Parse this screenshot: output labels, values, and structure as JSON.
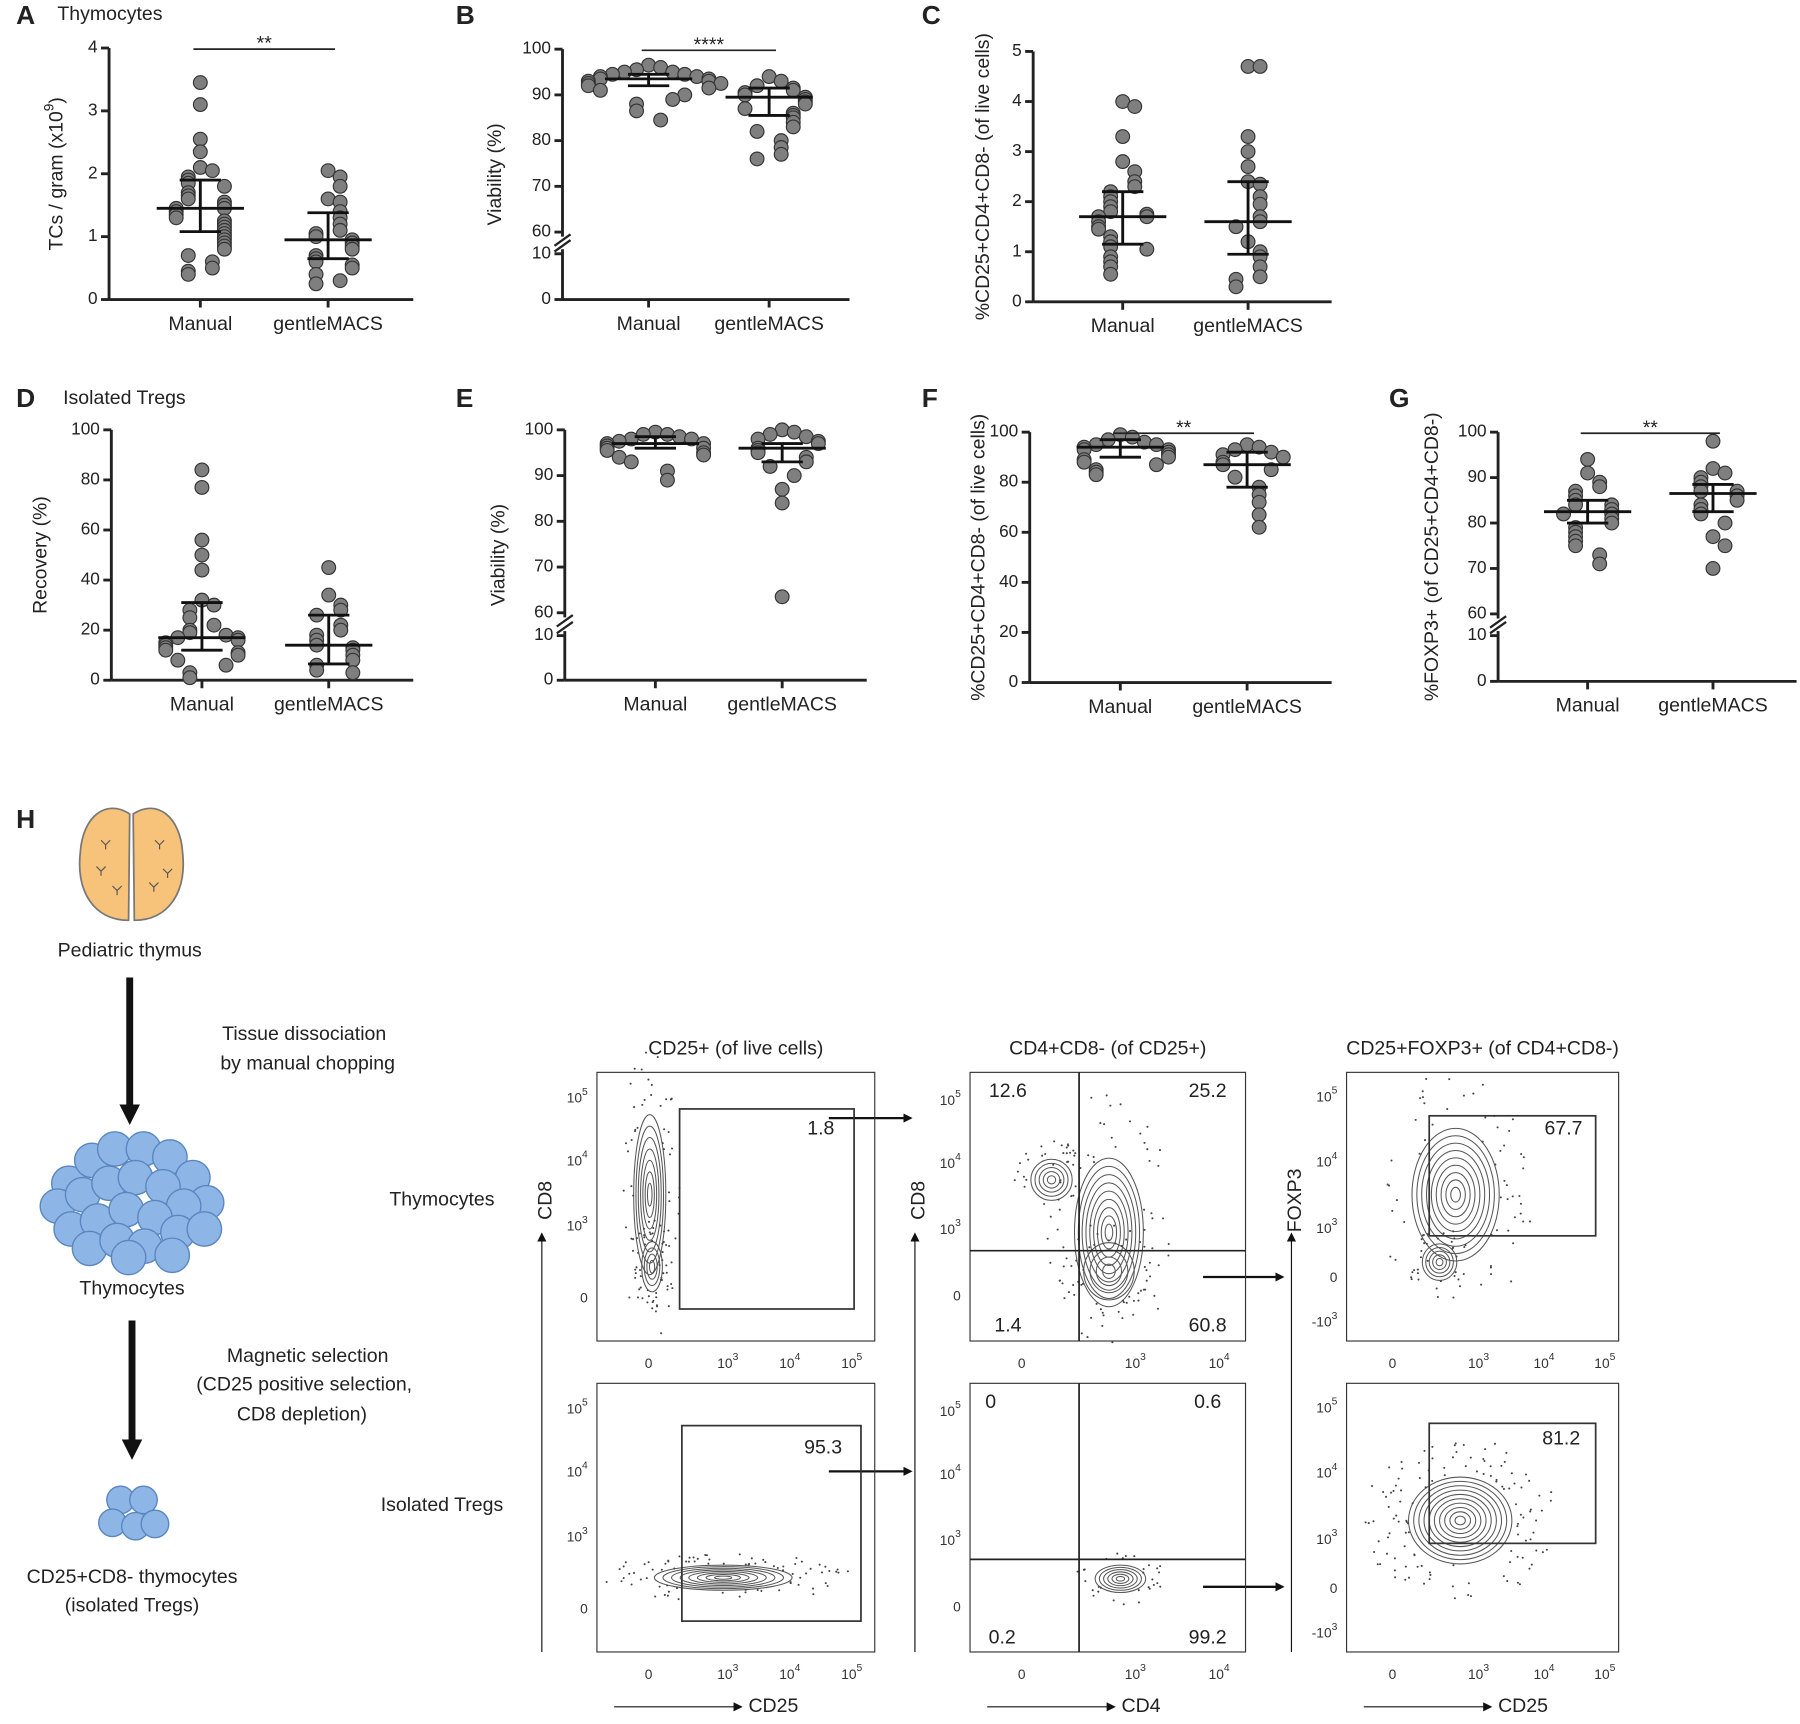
{
  "chart_data": [
    {
      "type": "dot",
      "panel": "A",
      "title": "Thymocytes",
      "ylabel": [
        "TCs / gram (x10",
        "9",
        ")"
      ],
      "categories": [
        "Manual",
        "gentleMACS"
      ],
      "values": [
        [
          3.45,
          3.1,
          2.55,
          2.35,
          2.1,
          2.05,
          1.95,
          1.9,
          1.85,
          1.8,
          1.7,
          1.65,
          1.6,
          1.55,
          1.5,
          1.45,
          1.45,
          1.4,
          1.35,
          1.3,
          1.25,
          1.2,
          1.15,
          1.1,
          1.05,
          1.0,
          0.95,
          0.9,
          0.85,
          0.8,
          0.7,
          0.6,
          0.5,
          0.45,
          0.4
        ],
        [
          2.05,
          1.95,
          1.8,
          1.6,
          1.55,
          1.4,
          1.3,
          1.2,
          1.1,
          1.05,
          1.0,
          0.95,
          0.9,
          0.85,
          0.8,
          0.7,
          0.65,
          0.6,
          0.55,
          0.5,
          0.4,
          0.3,
          0.25
        ]
      ],
      "medians": [
        1.45,
        0.95
      ],
      "q1": [
        1.08,
        0.65
      ],
      "q3": [
        1.9,
        1.38
      ],
      "ylim": [
        0,
        4
      ],
      "yticks": [
        0,
        1,
        2,
        3,
        4
      ],
      "significance": "**",
      "color": "#7f7f7f"
    },
    {
      "type": "dot",
      "panel": "B",
      "ylabel": "Viability (%)",
      "categories": [
        "Manual",
        "gentleMACS"
      ],
      "values": [
        [
          96.5,
          96,
          95.5,
          95,
          95,
          94.5,
          94.5,
          94,
          94,
          93.5,
          93.5,
          93,
          93,
          92.5,
          92.5,
          92,
          91.5,
          91,
          90,
          89,
          88,
          86.5,
          84.5
        ],
        [
          94,
          93,
          92,
          91.5,
          91,
          90.5,
          90,
          89.5,
          89,
          88.5,
          88,
          87,
          86,
          85.5,
          85,
          84,
          83,
          82,
          80,
          78.5,
          77,
          76
        ]
      ],
      "medians": [
        93.5,
        89.5
      ],
      "q1": [
        92,
        85.5
      ],
      "q3": [
        94.5,
        91.5
      ],
      "ylim": [
        60,
        100
      ],
      "yticks": [
        60,
        70,
        80,
        90,
        100
      ],
      "ylim_break": [
        0,
        10
      ],
      "yticks_break": [
        0,
        10
      ],
      "significance": "****",
      "color": "#7f7f7f"
    },
    {
      "type": "dot",
      "panel": "C",
      "ylabel": "%CD25+CD4+CD8- (of live cells)",
      "categories": [
        "Manual",
        "gentleMACS"
      ],
      "values": [
        [
          4.0,
          3.9,
          3.3,
          2.8,
          2.6,
          2.4,
          2.3,
          2.2,
          2.1,
          2.0,
          1.9,
          1.8,
          1.75,
          1.7,
          1.7,
          1.6,
          1.5,
          1.45,
          1.3,
          1.2,
          1.1,
          1.05,
          0.9,
          0.8,
          0.7,
          0.55
        ],
        [
          4.7,
          4.7,
          3.3,
          3.0,
          2.7,
          2.4,
          2.35,
          2.1,
          1.95,
          1.7,
          1.6,
          1.5,
          1.2,
          1.0,
          0.9,
          0.7,
          0.5,
          0.45,
          0.3
        ]
      ],
      "medians": [
        1.7,
        1.6
      ],
      "q1": [
        1.15,
        0.95
      ],
      "q3": [
        2.2,
        2.4
      ],
      "ylim": [
        0,
        5
      ],
      "yticks": [
        0,
        1,
        2,
        3,
        4,
        5
      ],
      "color": "#7f7f7f"
    },
    {
      "type": "dot",
      "panel": "D",
      "title": "Isolated Tregs",
      "ylabel": "Recovery (%)",
      "categories": [
        "Manual",
        "gentleMACS"
      ],
      "values": [
        [
          84,
          77,
          56,
          50,
          44,
          32,
          30,
          28,
          25,
          22,
          20,
          19,
          18,
          17,
          17,
          16,
          15,
          14,
          13,
          12,
          11,
          10,
          8,
          6,
          3,
          1
        ],
        [
          45,
          34,
          30,
          28,
          26,
          22,
          20,
          18,
          16,
          14,
          13,
          12,
          10,
          8,
          6,
          4,
          3
        ]
      ],
      "medians": [
        17,
        14
      ],
      "q1": [
        12,
        6.5
      ],
      "q3": [
        31,
        26
      ],
      "ylim": [
        0,
        100
      ],
      "yticks": [
        0,
        20,
        40,
        60,
        80,
        100
      ],
      "color": "#7f7f7f"
    },
    {
      "type": "dot",
      "panel": "E",
      "ylabel": "Viability (%)",
      "categories": [
        "Manual",
        "gentleMACS"
      ],
      "values": [
        [
          99.5,
          99,
          99,
          98.5,
          98,
          98,
          97.5,
          97,
          97,
          96.5,
          96,
          96,
          95.5,
          95,
          94.5,
          94,
          93,
          91,
          89
        ],
        [
          100,
          99.5,
          99,
          98.5,
          98,
          97.5,
          97,
          96,
          95.5,
          95,
          94,
          93,
          92,
          90,
          87,
          84,
          63.5
        ]
      ],
      "medians": [
        97,
        96
      ],
      "q1": [
        96,
        93
      ],
      "q3": [
        98.5,
        97
      ],
      "ylim": [
        60,
        100
      ],
      "yticks": [
        60,
        70,
        80,
        90,
        100
      ],
      "ylim_break": [
        0,
        10
      ],
      "yticks_break": [
        0,
        10
      ],
      "color": "#7f7f7f"
    },
    {
      "type": "dot",
      "panel": "F",
      "ylabel": "%CD25+CD4+CD8- (of live cells)",
      "categories": [
        "Manual",
        "gentleMACS"
      ],
      "values": [
        [
          99,
          98,
          97,
          96,
          95,
          95,
          94,
          93,
          93,
          92,
          91,
          90,
          89,
          88,
          87,
          85,
          84,
          83
        ],
        [
          95,
          94,
          93,
          92,
          91,
          90,
          88,
          87,
          85,
          82,
          78,
          75,
          72,
          67,
          62
        ]
      ],
      "medians": [
        94,
        87
      ],
      "q1": [
        90,
        78
      ],
      "q3": [
        97,
        92
      ],
      "ylim": [
        0,
        100
      ],
      "yticks": [
        0,
        20,
        40,
        60,
        80,
        100
      ],
      "significance": "**",
      "color": "#7f7f7f"
    },
    {
      "type": "dot",
      "panel": "G",
      "ylabel": "%FOXP3+ (of CD25+CD4+CD8-)",
      "categories": [
        "Manual",
        "gentleMACS"
      ],
      "values": [
        [
          94,
          91,
          89,
          88,
          87,
          86,
          85,
          84,
          84,
          83,
          82,
          82,
          81,
          80,
          79,
          78,
          77,
          76,
          75,
          73,
          71
        ],
        [
          98,
          92,
          91,
          90,
          89,
          88,
          87,
          87,
          86,
          85,
          84,
          83,
          82,
          80,
          77,
          75,
          70
        ]
      ],
      "medians": [
        82.5,
        86.5
      ],
      "q1": [
        80,
        82.5
      ],
      "q3": [
        85,
        88.5
      ],
      "ylim": [
        60,
        100
      ],
      "yticks": [
        60,
        70,
        80,
        90,
        100
      ],
      "ylim_break": [
        0,
        10
      ],
      "yticks_break": [
        0,
        10
      ],
      "significance": "**",
      "color": "#7f7f7f"
    }
  ],
  "figure_h": {
    "panel": "H",
    "source": "Pediatric thymus",
    "step1": [
      "Tissue dissociation",
      "by manual chopping"
    ],
    "intermediate": "Thymocytes",
    "step2": [
      "Magnetic selection",
      "(CD25 positive selection,",
      "CD8 depletion)"
    ],
    "product": [
      "CD25+CD8- thymocytes",
      "(isolated Tregs)"
    ],
    "rows": [
      "Thymocytes",
      "Isolated Tregs"
    ],
    "columns": [
      {
        "title": "CD25+ (of live cells)",
        "xlabel": "CD25",
        "ylabel": "CD8",
        "yticks": [
          [
            "0"
          ],
          [
            "10",
            "3"
          ],
          [
            "10",
            "4"
          ],
          [
            "10",
            "5"
          ]
        ],
        "xticks": [
          [
            "0"
          ],
          [
            "10",
            "3"
          ],
          [
            "10",
            "4"
          ],
          [
            "10",
            "5"
          ]
        ],
        "gates": [
          [
            1.8
          ],
          [
            95.3
          ]
        ]
      },
      {
        "title": "CD4+CD8- (of CD25+)",
        "xlabel": "CD4",
        "ylabel": "CD8",
        "yticks": [
          [
            "0"
          ],
          [
            "10",
            "3"
          ],
          [
            "10",
            "4"
          ],
          [
            "10",
            "5"
          ]
        ],
        "xticks": [
          [
            "0"
          ],
          [
            "10",
            "3"
          ],
          [
            "10",
            "4"
          ]
        ],
        "gates": [
          [
            12.6,
            25.2,
            1.4,
            60.8
          ],
          [
            0,
            0.6,
            0.2,
            99.2
          ]
        ]
      },
      {
        "title": "CD25+FOXP3+ (of CD4+CD8-)",
        "xlabel": "CD25",
        "ylabel": "FOXP3",
        "yticks": [
          [
            "-10",
            "3"
          ],
          [
            "0"
          ],
          [
            "10",
            "3"
          ],
          [
            "10",
            "4"
          ],
          [
            "10",
            "5"
          ]
        ],
        "xticks": [
          [
            "0"
          ],
          [
            "10",
            "3"
          ],
          [
            "10",
            "4"
          ],
          [
            "10",
            "5"
          ]
        ],
        "gates": [
          [
            67.7
          ],
          [
            81.2
          ]
        ]
      }
    ]
  }
}
